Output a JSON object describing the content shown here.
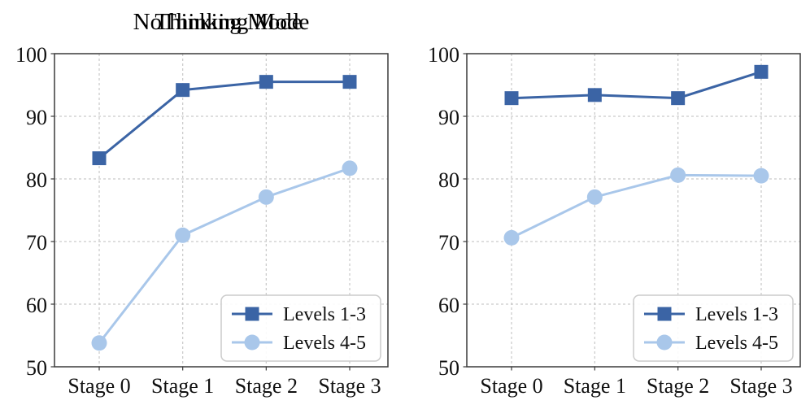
{
  "figure": {
    "background": "#ffffff",
    "text_color": "#111111",
    "grid_color": "#c9c9c9",
    "spine_color": "#3a3a3a",
    "legend_border_color": "#cccccc",
    "legend_background": "#ffffff"
  },
  "chart_data": [
    {
      "type": "line",
      "title": "NoThinking Mode",
      "categories": [
        "Stage 0",
        "Stage 1",
        "Stage 2",
        "Stage 3"
      ],
      "ylim": [
        50,
        100
      ],
      "yticks": [
        50,
        60,
        70,
        80,
        90,
        100
      ],
      "grid": true,
      "legend_position": "lower right",
      "series": [
        {
          "name": "Levels 1-3",
          "marker": "square",
          "color": "#3B64A5",
          "values": [
            83.3,
            94.2,
            95.5,
            95.5
          ]
        },
        {
          "name": "Levels 4-5",
          "marker": "circle",
          "color": "#A9C7EA",
          "values": [
            53.8,
            71.0,
            77.1,
            81.7
          ]
        }
      ]
    },
    {
      "type": "line",
      "title": "Thinking Mode",
      "categories": [
        "Stage 0",
        "Stage 1",
        "Stage 2",
        "Stage 3"
      ],
      "ylim": [
        50,
        100
      ],
      "yticks": [
        50,
        60,
        70,
        80,
        90,
        100
      ],
      "grid": true,
      "legend_position": "lower right",
      "series": [
        {
          "name": "Levels 1-3",
          "marker": "square",
          "color": "#3B64A5",
          "values": [
            92.9,
            93.4,
            92.9,
            97.1
          ]
        },
        {
          "name": "Levels 4-5",
          "marker": "circle",
          "color": "#A9C7EA",
          "values": [
            70.6,
            77.1,
            80.6,
            80.5
          ]
        }
      ]
    }
  ]
}
